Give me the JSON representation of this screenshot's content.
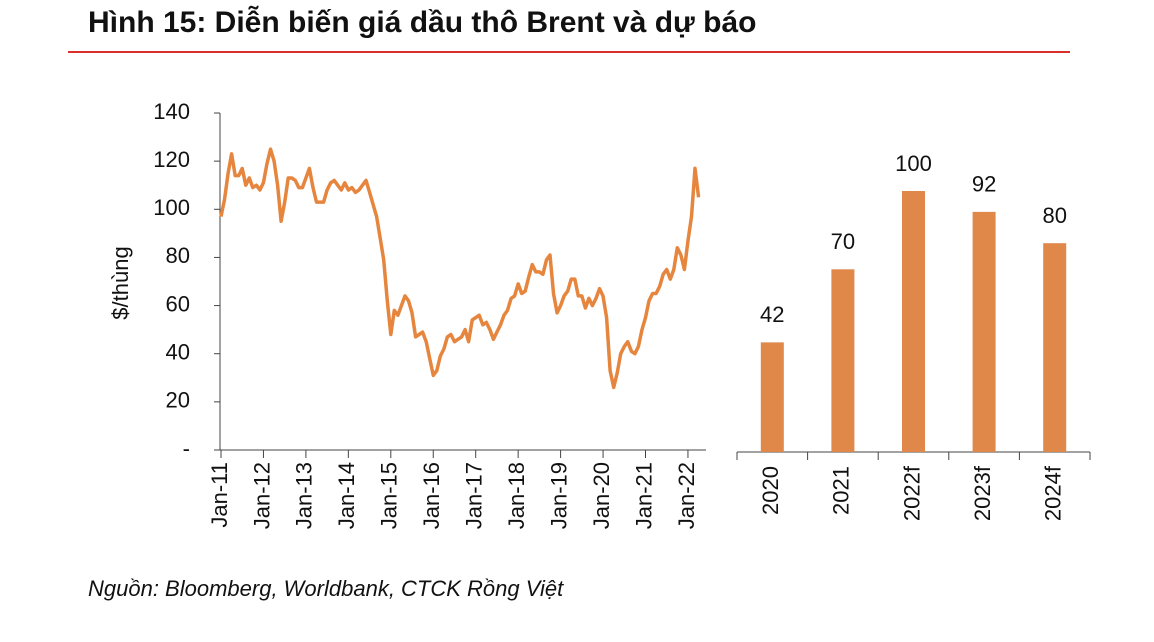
{
  "header": {
    "title": "Hình 15: Diễn biến giá dầu thô Brent và dự báo"
  },
  "chart_data": [
    {
      "type": "line",
      "y_label": "$/thùng",
      "color": "#e6863e",
      "categories": [
        "Jan-11",
        null,
        null,
        null,
        null,
        null,
        null,
        null,
        null,
        null,
        null,
        null,
        "Jan-12",
        null,
        null,
        null,
        null,
        null,
        null,
        null,
        null,
        null,
        null,
        null,
        "Jan-13",
        null,
        null,
        null,
        null,
        null,
        null,
        null,
        null,
        null,
        null,
        null,
        "Jan-14",
        null,
        null,
        null,
        null,
        null,
        null,
        null,
        null,
        null,
        null,
        null,
        "Jan-15",
        null,
        null,
        null,
        null,
        null,
        null,
        null,
        null,
        null,
        null,
        null,
        "Jan-16",
        null,
        null,
        null,
        null,
        null,
        null,
        null,
        null,
        null,
        null,
        null,
        "Jan-17",
        null,
        null,
        null,
        null,
        null,
        null,
        null,
        null,
        null,
        null,
        null,
        "Jan-18",
        null,
        null,
        null,
        null,
        null,
        null,
        null,
        null,
        null,
        null,
        null,
        "Jan-19",
        null,
        null,
        null,
        null,
        null,
        null,
        null,
        null,
        null,
        null,
        null,
        "Jan-20",
        null,
        null,
        null,
        null,
        null,
        null,
        null,
        null,
        null,
        null,
        null,
        "Jan-21",
        null,
        null,
        null,
        null,
        null,
        null,
        null,
        null,
        null,
        null,
        null,
        "Jan-22",
        null,
        null,
        null
      ],
      "values": [
        97,
        104,
        115,
        123,
        114,
        114,
        117,
        110,
        113,
        109,
        110,
        108,
        111,
        119,
        125,
        120,
        110,
        95,
        103,
        113,
        113,
        112,
        109,
        109,
        113,
        117,
        109,
        103,
        103,
        103,
        108,
        111,
        112,
        110,
        108,
        111,
        108,
        109,
        107,
        108,
        110,
        112,
        107,
        102,
        97,
        88,
        79,
        62,
        48,
        58,
        56,
        60,
        64,
        62,
        57,
        47,
        48,
        49,
        45,
        38,
        31,
        33,
        39,
        42,
        47,
        48,
        45,
        46,
        47,
        50,
        45,
        54,
        55,
        56,
        52,
        53,
        50,
        46,
        49,
        52,
        56,
        58,
        63,
        64,
        69,
        65,
        66,
        72,
        77,
        74,
        74,
        73,
        79,
        81,
        65,
        57,
        60,
        64,
        66,
        71,
        71,
        64,
        64,
        59,
        63,
        60,
        63,
        67,
        64,
        55,
        33,
        26,
        32,
        40,
        43,
        45,
        41,
        40,
        43,
        50,
        55,
        62,
        65,
        65,
        68,
        73,
        75,
        71,
        75,
        84,
        81,
        75,
        87,
        97,
        117,
        105
      ],
      "ylim": [
        0,
        140
      ],
      "yticks": [
        {
          "value": 0,
          "label": "-"
        },
        20,
        40,
        60,
        80,
        100,
        120,
        140
      ]
    },
    {
      "type": "bar",
      "color": "#e0874a",
      "categories": [
        "2020",
        "2021",
        "2022f",
        "2023f",
        "2024f"
      ],
      "values": [
        42,
        70,
        100,
        92,
        80
      ]
    }
  ],
  "source": "Nguồn: Bloomberg, Worldbank, CTCK Rồng Việt"
}
